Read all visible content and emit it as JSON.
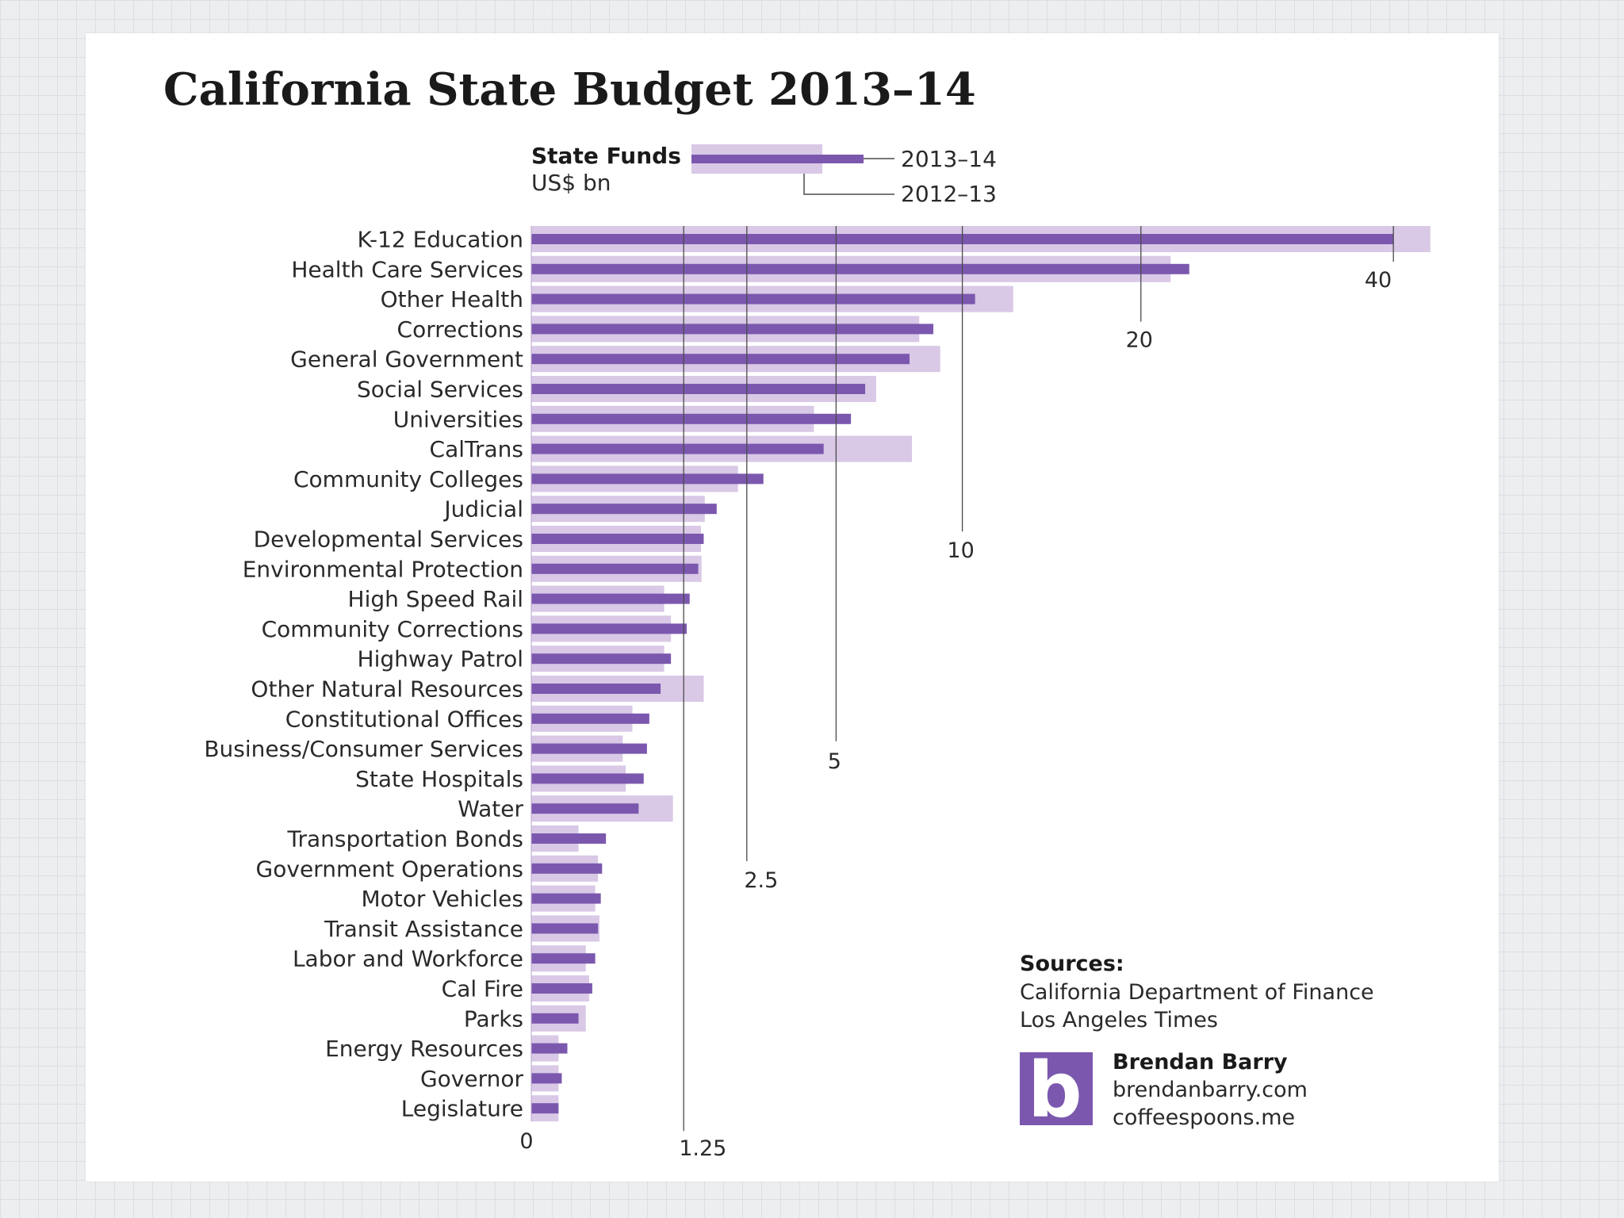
{
  "chart_data": {
    "type": "bar",
    "orientation": "horizontal",
    "title": "California State Budget 2013–14",
    "legend": {
      "title": "State Funds",
      "unit": "US$ bn",
      "series_labels": [
        "2013–14",
        "2012–13"
      ]
    },
    "scale": "sqrt",
    "tick_values": [
      0,
      1.25,
      2.5,
      5,
      10,
      20,
      40
    ],
    "tick_labels": [
      "0",
      "1.25",
      "2.5",
      "5",
      "10",
      "20",
      "40"
    ],
    "categories": [
      "K-12 Education",
      "Health Care Services",
      "Other Health",
      "Corrections",
      "General Government",
      "Social Services",
      "Universities",
      "CalTrans",
      "Community Colleges",
      "Judicial",
      "Developmental Services",
      "Environmental Protection",
      "High Speed Rail",
      "Community Corrections",
      "Highway Patrol",
      "Other Natural Resources",
      "Constitutional Offices",
      "Business/Consumer Services",
      "State Hospitals",
      "Water",
      "Transportation Bonds",
      "Government Operations",
      "Motor Vehicles",
      "Transit Assistance",
      "Labor and Workforce",
      "Cal Fire",
      "Parks",
      "Energy Resources",
      "Governor",
      "Legislature"
    ],
    "series": [
      {
        "name": "2013–14",
        "values": [
          40.0,
          23.3,
          10.6,
          8.7,
          7.7,
          6.0,
          5.5,
          4.6,
          2.9,
          1.85,
          1.6,
          1.5,
          1.35,
          1.3,
          1.05,
          0.9,
          0.75,
          0.72,
          0.68,
          0.62,
          0.3,
          0.27,
          0.26,
          0.24,
          0.22,
          0.2,
          0.12,
          0.07,
          0.05,
          0.04
        ]
      },
      {
        "name": "2012–13",
        "values": [
          43.5,
          22.0,
          12.5,
          8.1,
          9.0,
          6.4,
          4.3,
          7.8,
          2.3,
          1.62,
          1.55,
          1.56,
          0.95,
          1.05,
          0.95,
          1.6,
          0.55,
          0.45,
          0.48,
          1.08,
          0.12,
          0.24,
          0.22,
          0.25,
          0.16,
          0.18,
          0.16,
          0.04,
          0.04,
          0.04
        ]
      }
    ],
    "colors": {
      "current": "#7b58ae",
      "previous": "#d9c8e6",
      "gridline": "#4a4a4a"
    },
    "sources": {
      "heading": "Sources:",
      "lines": [
        "California Department of Finance",
        "Los Angeles Times"
      ]
    },
    "credit": {
      "logo_letter": "b",
      "name": "Brendan Barry",
      "sites": [
        "brendanbarry.com",
        "coffeespoons.me"
      ]
    }
  }
}
